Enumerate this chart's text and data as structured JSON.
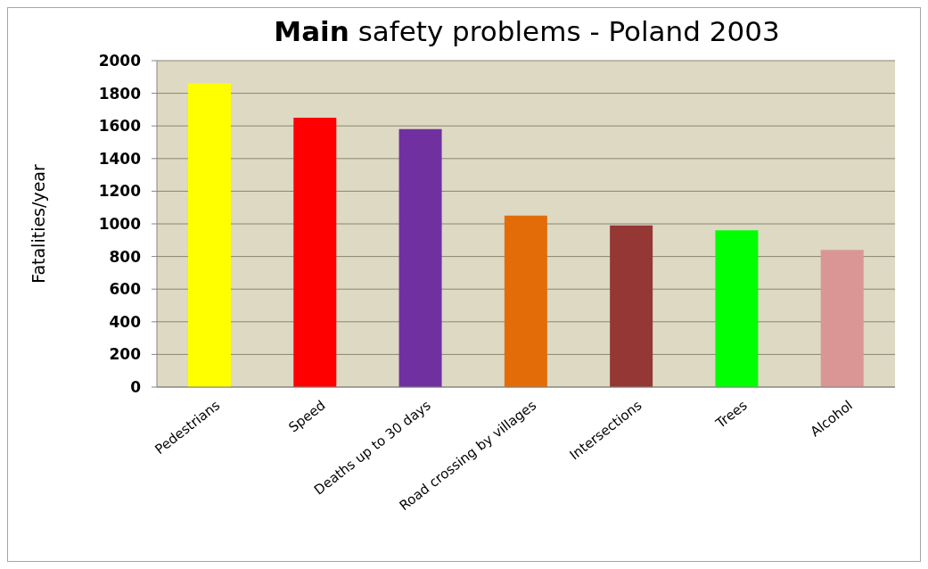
{
  "chart_data": {
    "type": "bar",
    "title": "Main safety problems - Poland 2003",
    "ylabel": "Fatalities/year",
    "categories": [
      "Pedestrians",
      "Speed",
      "Deaths up to 30 days",
      "Road crossing by villages",
      "Intersections",
      "Trees",
      "Alcohol"
    ],
    "values": [
      1860,
      1650,
      1580,
      1050,
      990,
      960,
      840
    ],
    "colors": [
      "#ffff00",
      "#ff0000",
      "#7030a0",
      "#e36c09",
      "#953735",
      "#00ff00",
      "#d99694"
    ],
    "ylim": [
      0,
      2000
    ],
    "yticks": [
      0,
      200,
      400,
      600,
      800,
      1000,
      1200,
      1400,
      1600,
      1800,
      2000
    ],
    "grid": "y"
  }
}
